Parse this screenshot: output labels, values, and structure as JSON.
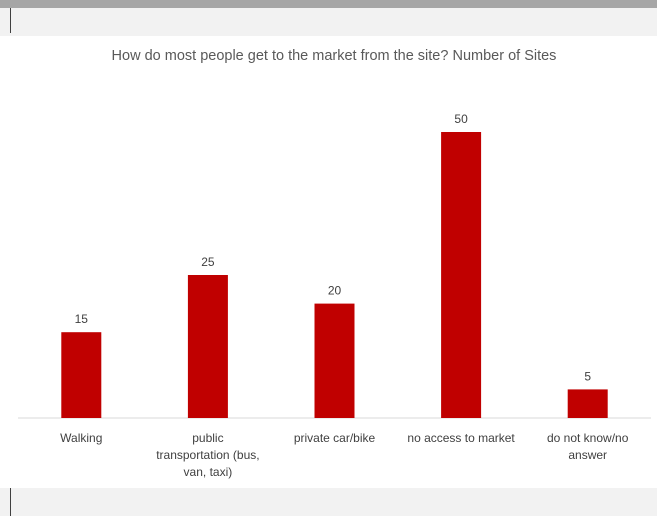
{
  "chart_data": {
    "type": "bar",
    "title": "How do most people get to the market from the site? Number of Sites",
    "categories": [
      [
        "Walking"
      ],
      [
        "public",
        "transportation (bus,",
        "van, taxi)"
      ],
      [
        "private car/bike"
      ],
      [
        "no access to market"
      ],
      [
        "do not know/no",
        "answer"
      ]
    ],
    "values": [
      15,
      25,
      20,
      50,
      5
    ],
    "ylim": [
      0,
      50
    ],
    "bar_color": "#c00000",
    "grid": false,
    "legend": "none",
    "data_labels": true
  }
}
